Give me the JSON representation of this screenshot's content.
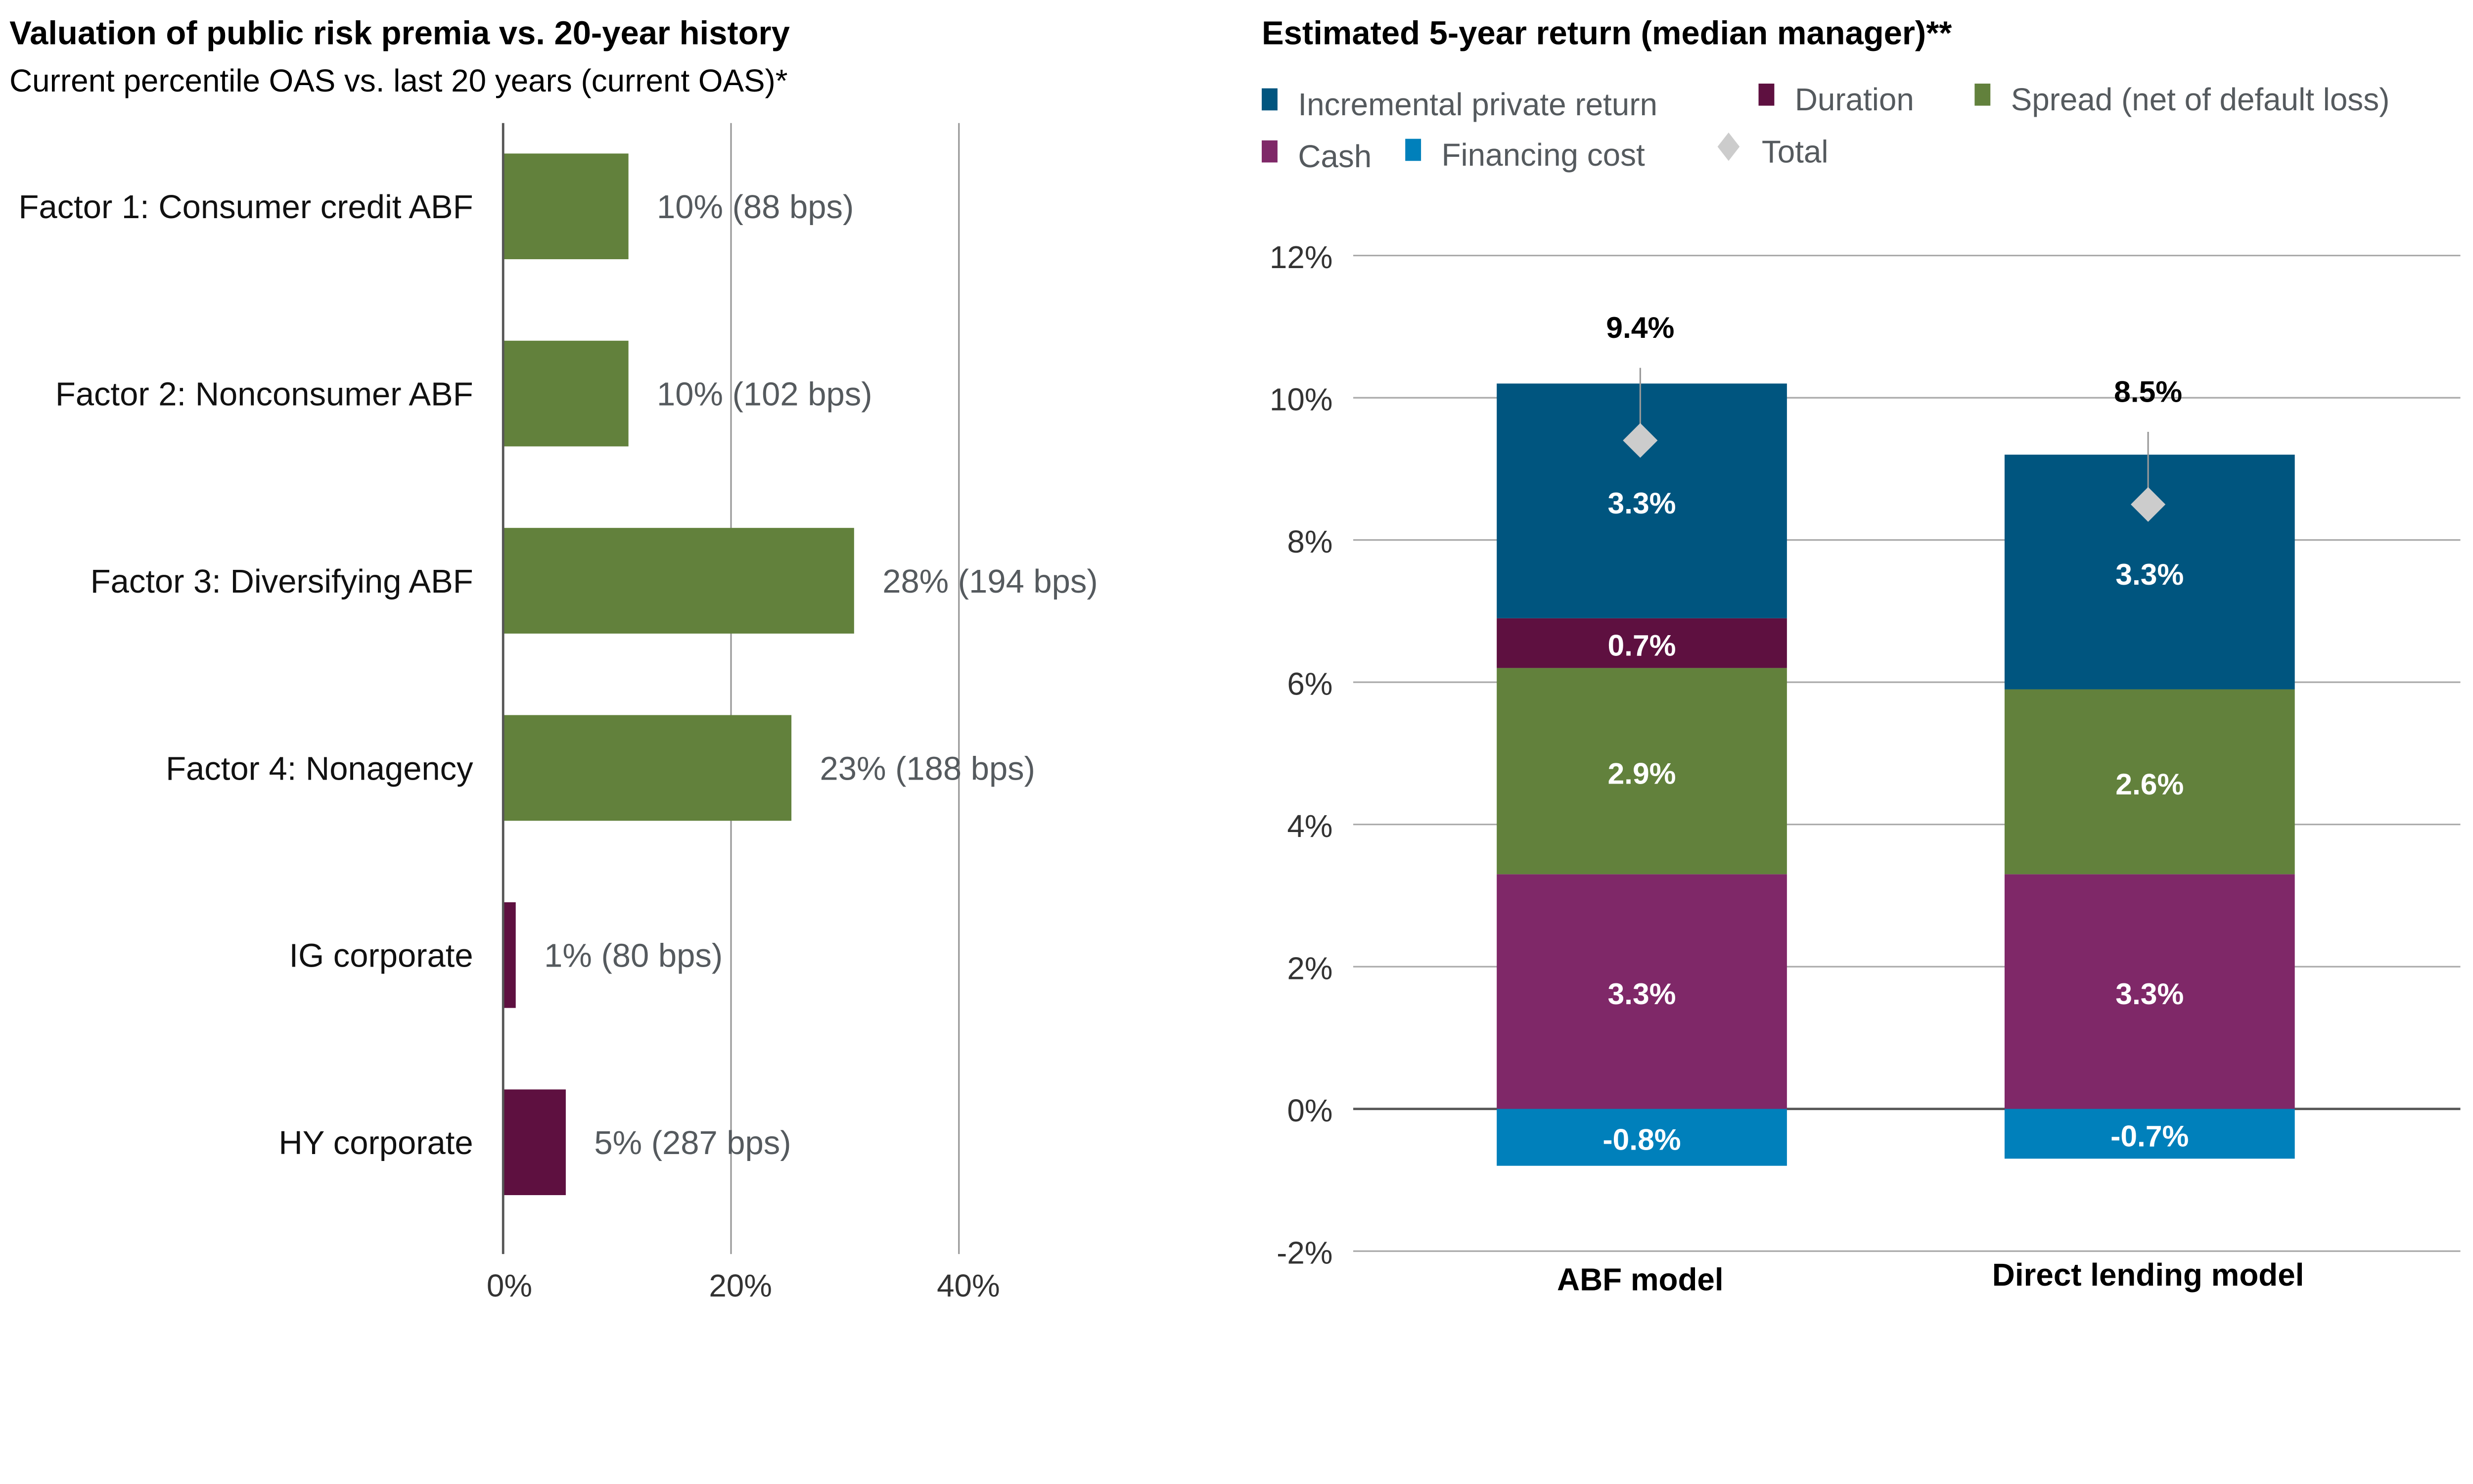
{
  "chart_data": [
    {
      "type": "bar",
      "orientation": "horizontal",
      "title": "Valuation of public risk premia vs. 20-year history",
      "subtitle": "Current percentile OAS vs. last 20 years (current OAS)*",
      "categories": [
        "Factor 1: Consumer credit ABF",
        "Factor 2: Nonconsumer ABF",
        "Factor 3: Diversifying ABF",
        "Factor 4: Nonagency",
        "IG corporate",
        "HY corporate"
      ],
      "values": [
        10,
        10,
        28,
        23,
        1,
        5
      ],
      "data_labels": [
        "10% (88 bps)",
        "10% (102 bps)",
        "28% (194 bps)",
        "23% (188 bps)",
        "1% (80 bps)",
        "5% (287 bps)"
      ],
      "bar_colors": [
        "#62813c",
        "#62813c",
        "#62813c",
        "#62813c",
        "#5e1040",
        "#5e1040"
      ],
      "xticks": [
        "0%",
        "20%",
        "40%"
      ],
      "xlim": [
        0,
        40
      ],
      "grid": true
    },
    {
      "type": "bar",
      "stacked": true,
      "title": "Estimated 5-year return (median manager)**",
      "categories": [
        "ABF model",
        "Direct lending model"
      ],
      "series": [
        {
          "name": "Cash",
          "color": "#7f2868",
          "values": [
            3.3,
            3.3
          ],
          "labels": [
            "3.3%",
            "3.3%"
          ]
        },
        {
          "name": "Spread (net of default loss)",
          "color": "#62813c",
          "values": [
            2.9,
            2.6
          ],
          "labels": [
            "2.9%",
            "2.6%"
          ]
        },
        {
          "name": "Duration",
          "color": "#5e1040",
          "values": [
            0.7,
            0
          ],
          "labels": [
            "0.7%",
            ""
          ]
        },
        {
          "name": "Incremental private return",
          "color": "#00557f",
          "values": [
            3.3,
            3.3
          ],
          "labels": [
            "3.3%",
            "3.3%"
          ]
        },
        {
          "name": "Financing cost",
          "color": "#0080bb",
          "values": [
            -0.8,
            -0.7
          ],
          "labels": [
            "-0.8%",
            "-0.7%"
          ]
        }
      ],
      "total": {
        "name": "Total",
        "color": "#cccccc",
        "values": [
          9.4,
          8.5
        ],
        "labels": [
          "9.4%",
          "8.5%"
        ]
      },
      "legend_order": [
        "Incremental private return",
        "Duration",
        "Spread (net of default loss)",
        "Cash",
        "Financing cost",
        "Total"
      ],
      "legend_placement": "top",
      "yticks": [
        "12%",
        "10%",
        "8%",
        "6%",
        "4%",
        "2%",
        "0%",
        "-2%"
      ],
      "ylim": [
        -2,
        12
      ],
      "grid": true
    }
  ]
}
